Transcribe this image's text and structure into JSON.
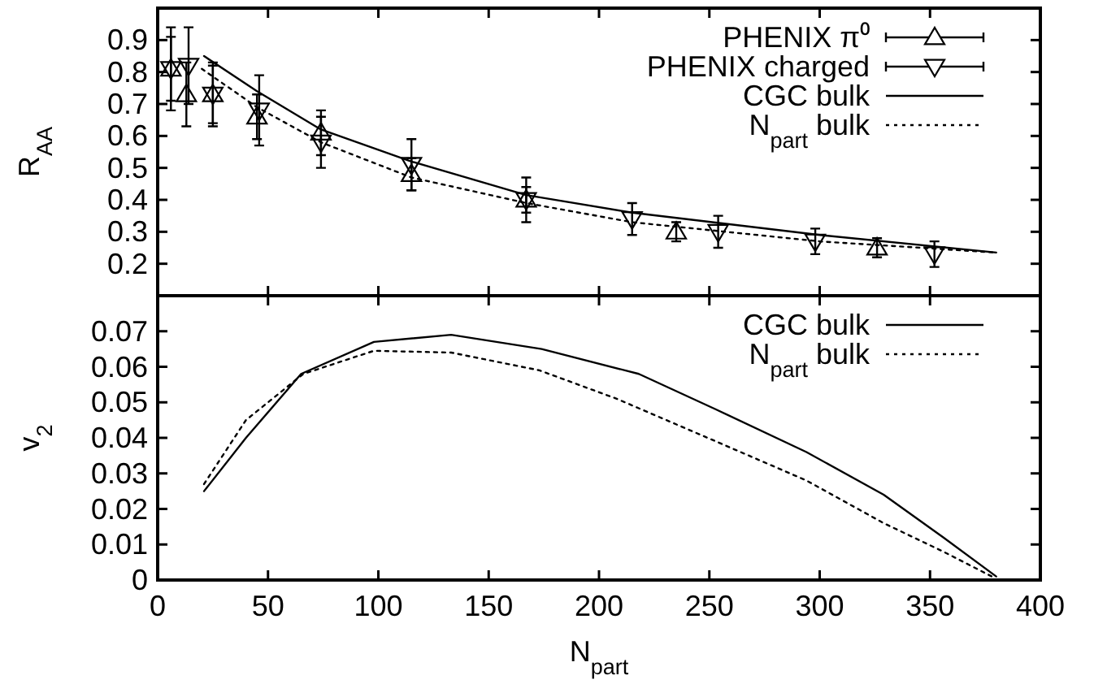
{
  "chart_data": [
    {
      "type": "line",
      "ylabel": "R$_{AA}$",
      "xlim": [
        0,
        400
      ],
      "xticks": [
        0,
        50,
        100,
        150,
        200,
        250,
        300,
        350,
        400
      ],
      "ylim": [
        0.1,
        1.0
      ],
      "yticks": [
        0.2,
        0.3,
        0.4,
        0.5,
        0.6,
        0.7,
        0.8,
        0.9
      ],
      "tick_labels": "y",
      "legend": "top right",
      "series": [
        {
          "name": "PHENIX π⁰",
          "type": "scatter",
          "color": "#000000",
          "marker": "triangle",
          "x": [
            6,
            13,
            25,
            45,
            74,
            115,
            167,
            235,
            326
          ],
          "values": [
            0.81,
            0.73,
            0.73,
            0.66,
            0.61,
            0.48,
            0.4,
            0.3,
            0.25
          ],
          "errors": [
            0.13,
            0.1,
            0.09,
            0.07,
            0.07,
            0.05,
            0.04,
            0.03,
            0.03
          ]
        },
        {
          "name": "PHENIX charged",
          "type": "scatter",
          "color": "#000000",
          "marker": "triangle-down",
          "x": [
            6,
            14,
            25,
            46,
            74,
            115,
            167,
            215,
            254,
            298,
            352
          ],
          "values": [
            0.81,
            0.82,
            0.73,
            0.68,
            0.58,
            0.51,
            0.4,
            0.34,
            0.3,
            0.27,
            0.23
          ],
          "errors": [
            0.1,
            0.12,
            0.1,
            0.11,
            0.08,
            0.08,
            0.07,
            0.05,
            0.05,
            0.04,
            0.04
          ]
        },
        {
          "name": "CGC bulk",
          "type": "line",
          "color": "#000000",
          "line_style": "solid",
          "x": [
            21,
            45,
            74,
            115,
            167,
            215,
            300,
            380
          ],
          "values": [
            0.85,
            0.74,
            0.62,
            0.52,
            0.415,
            0.36,
            0.29,
            0.235
          ]
        },
        {
          "name": "N$_{part}$ bulk",
          "type": "line",
          "color": "#000000",
          "line_style": "dotted",
          "x": [
            20,
            45,
            74,
            115,
            167,
            215,
            300,
            380
          ],
          "values": [
            0.81,
            0.69,
            0.58,
            0.47,
            0.39,
            0.33,
            0.27,
            0.235
          ]
        }
      ]
    },
    {
      "type": "line",
      "xlabel": "N$_{part}$",
      "ylabel": "v$_{2}$",
      "xlim": [
        0,
        400
      ],
      "xticks": [
        0,
        50,
        100,
        150,
        200,
        250,
        300,
        350,
        400
      ],
      "ylim": [
        0,
        0.08
      ],
      "yticks": [
        0,
        0.01,
        0.02,
        0.03,
        0.04,
        0.05,
        0.06,
        0.07
      ],
      "legend": "top right",
      "series": [
        {
          "name": "CGC bulk",
          "type": "line",
          "color": "#000000",
          "line_style": "solid",
          "x": [
            21,
            40,
            65,
            98,
            133,
            174,
            218,
            253,
            294,
            329,
            356,
            380
          ],
          "values": [
            0.025,
            0.04,
            0.058,
            0.067,
            0.069,
            0.065,
            0.058,
            0.048,
            0.036,
            0.024,
            0.012,
            0.001
          ]
        },
        {
          "name": "N$_{part}$ bulk",
          "type": "line",
          "color": "#000000",
          "line_style": "dotted",
          "x": [
            21,
            40,
            66,
            98,
            133,
            173,
            208,
            253,
            294,
            329,
            356,
            378
          ],
          "values": [
            0.027,
            0.045,
            0.058,
            0.0645,
            0.064,
            0.059,
            0.051,
            0.039,
            0.028,
            0.016,
            0.008,
            0.001
          ]
        }
      ]
    }
  ]
}
